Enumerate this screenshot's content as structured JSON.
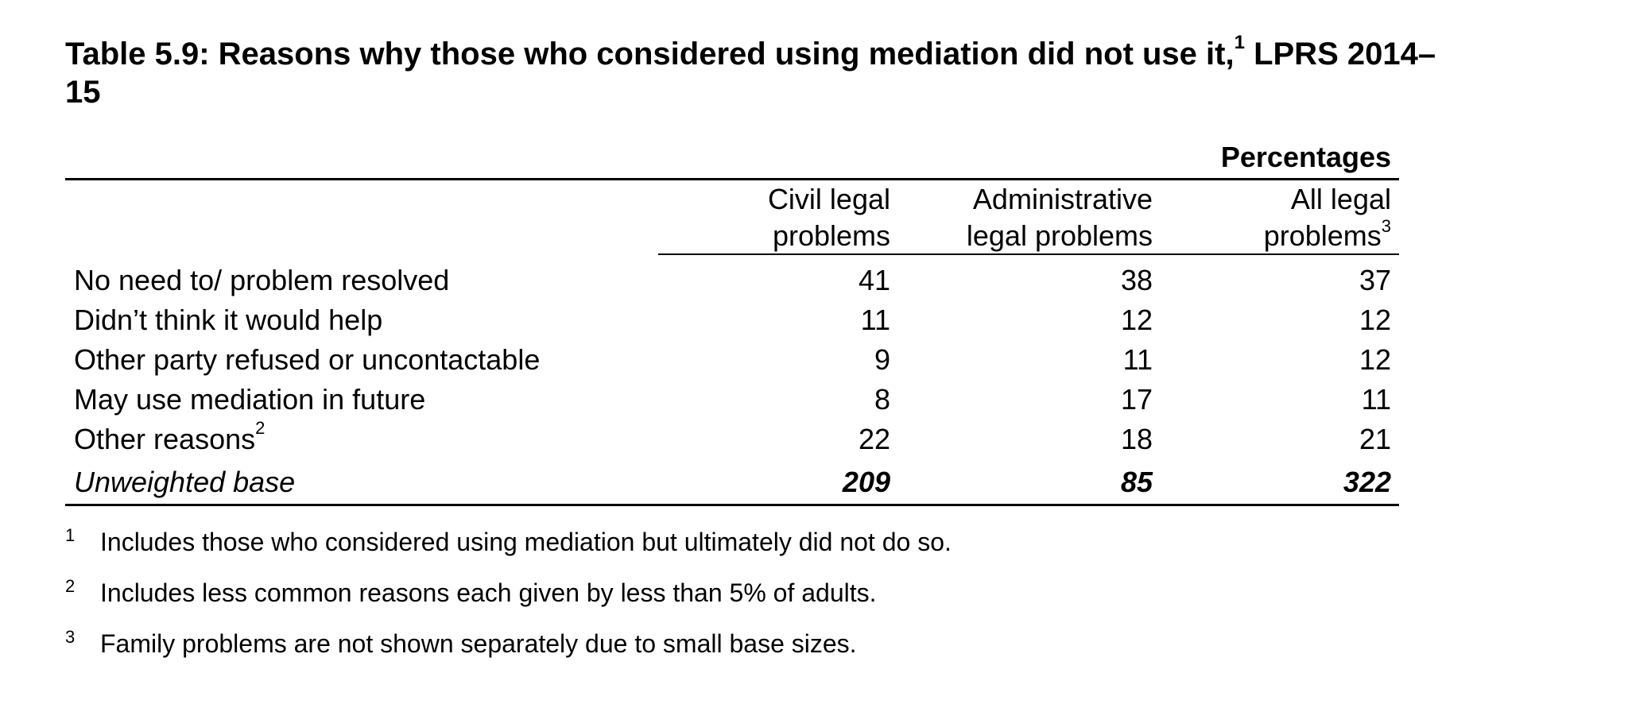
{
  "title": {
    "main": "Table 5.9: Reasons why those who considered using mediation did not use it,",
    "sup": "1",
    "rest": " LPRS 2014–15"
  },
  "units": "Percentages",
  "columns": [
    {
      "line1": "Civil legal",
      "line2": "problems",
      "sup": ""
    },
    {
      "line1": "Administrative",
      "line2": "legal problems",
      "sup": ""
    },
    {
      "line1": "All legal",
      "line2": "problems",
      "sup": "3"
    }
  ],
  "rows": [
    {
      "label": "No need to/ problem resolved",
      "sup": "",
      "values": [
        "41",
        "38",
        "37"
      ]
    },
    {
      "label": "Didn’t think it would help",
      "sup": "",
      "values": [
        "11",
        "12",
        "12"
      ]
    },
    {
      "label": "Other party refused or uncontactable",
      "sup": "",
      "values": [
        "9",
        "11",
        "12"
      ]
    },
    {
      "label": "May use mediation in future",
      "sup": "",
      "values": [
        "8",
        "17",
        "11"
      ]
    },
    {
      "label": "Other reasons",
      "sup": "2",
      "values": [
        "22",
        "18",
        "21"
      ]
    }
  ],
  "base": {
    "label": "Unweighted base",
    "values": [
      "209",
      "85",
      "322"
    ]
  },
  "footnotes": [
    {
      "num": "1",
      "text": "Includes those who considered using mediation but ultimately did not do so."
    },
    {
      "num": "2",
      "text": "Includes less common reasons each given by less than 5% of adults."
    },
    {
      "num": "3",
      "text": "Family problems are not shown separately due to small base sizes."
    }
  ]
}
